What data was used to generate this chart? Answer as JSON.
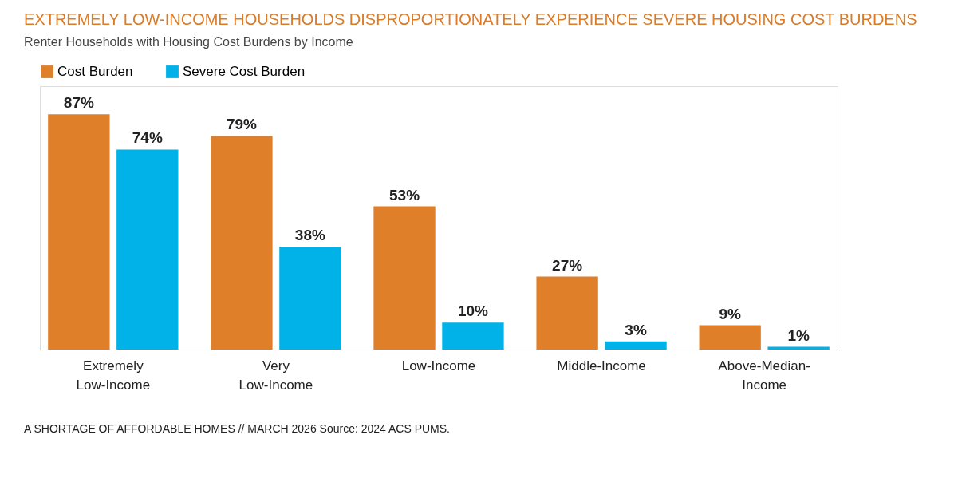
{
  "chart_data": {
    "type": "bar",
    "title": "EXTREMELY LOW-INCOME HOUSEHOLDS DISPROPORTIONATELY EXPERIENCE SEVERE HOUSING COST BURDENS",
    "subtitle": "Renter Households with Housing Cost Burdens by Income",
    "categories": [
      "Extremely\nLow-Income",
      "Very\nLow-Income",
      "Low-Income",
      "Middle-Income",
      "Above-Median-\nIncome"
    ],
    "series": [
      {
        "name": "Cost Burden",
        "color": "#e07f2a",
        "values": [
          87,
          79,
          53,
          27,
          9
        ],
        "value_labels": [
          "87%",
          "79%",
          "53%",
          "27%",
          "9%"
        ]
      },
      {
        "name": "Severe Cost Burden",
        "color": "#00b2e8",
        "values": [
          74,
          38,
          10,
          3,
          1
        ],
        "value_labels": [
          "74%",
          "38%",
          "10%",
          "3%",
          "1%"
        ]
      }
    ],
    "legend": "top",
    "grid": false,
    "annotations": [
      "A SHORTAGE OF AFFORDABLE HOMES // MARCH 2026   Source: 2024 ACS PUMS."
    ]
  }
}
